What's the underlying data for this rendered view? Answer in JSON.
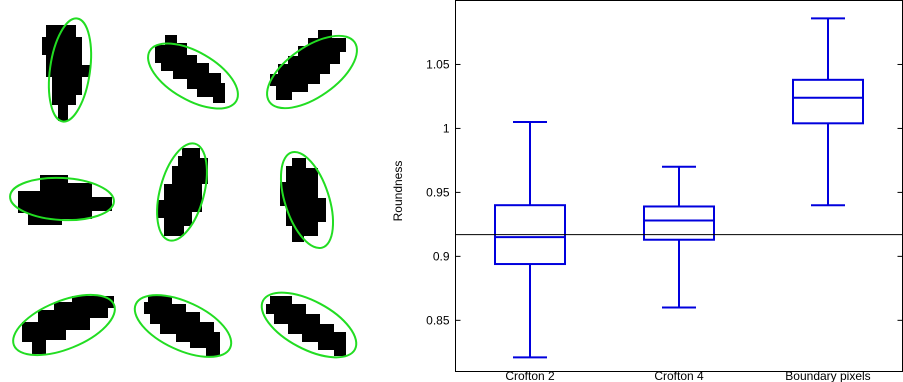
{
  "panels": {
    "blobs_grid": {
      "rows": 3,
      "cols": 3,
      "blob_color": "#000000",
      "ellipse_color": "#22dd22"
    }
  },
  "chart_data": {
    "type": "box",
    "title": "",
    "xlabel": "",
    "ylabel": "Roundness",
    "categories": [
      "Crofton 2",
      "Crofton 4",
      "Boundary pixels"
    ],
    "boxes": [
      {
        "whisker_low": 0.821,
        "q1": 0.894,
        "median": 0.915,
        "q3": 0.94,
        "whisker_high": 1.005
      },
      {
        "whisker_low": 0.86,
        "q1": 0.913,
        "median": 0.928,
        "q3": 0.939,
        "whisker_high": 0.97
      },
      {
        "whisker_low": 0.94,
        "q1": 1.004,
        "median": 1.024,
        "q3": 1.038,
        "whisker_high": 1.086
      }
    ],
    "reference_line": 0.917,
    "ylim": [
      0.81,
      1.1
    ],
    "yticks": [
      0.85,
      0.9,
      0.95,
      1,
      1.05
    ],
    "ytick_labels": [
      "0.85",
      "0.9",
      "0.95",
      "1",
      "1.05"
    ],
    "box_color": "#0000dd",
    "grid": false
  }
}
